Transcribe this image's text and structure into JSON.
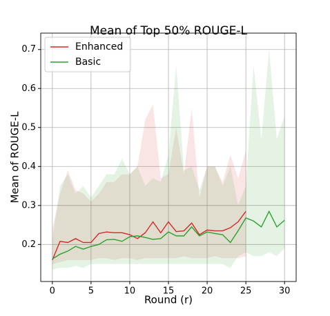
{
  "chart_data": {
    "type": "line",
    "title": "Mean of Top 50% ROUGE-L",
    "xlabel": "Round (r)",
    "ylabel": "Mean of ROUGE-L",
    "x": [
      0,
      1,
      2,
      3,
      4,
      5,
      6,
      7,
      8,
      9,
      10,
      11,
      12,
      13,
      14,
      15,
      16,
      17,
      18,
      19,
      20,
      21,
      22,
      23,
      24,
      25,
      26,
      27,
      28,
      29,
      30
    ],
    "series": [
      {
        "name": "Enhanced",
        "color": "#d62728",
        "values": [
          0.16,
          0.208,
          0.205,
          0.215,
          0.205,
          0.205,
          0.228,
          0.232,
          0.23,
          0.23,
          0.225,
          0.215,
          0.23,
          0.258,
          0.23,
          0.258,
          0.233,
          0.235,
          0.255,
          0.225,
          0.237,
          0.235,
          0.235,
          0.243,
          0.258,
          0.285,
          null,
          null,
          null,
          null,
          null
        ],
        "upper": [
          0.24,
          0.33,
          0.39,
          0.34,
          0.33,
          0.31,
          0.33,
          0.36,
          0.36,
          0.38,
          0.38,
          0.4,
          0.52,
          0.56,
          0.37,
          0.38,
          0.5,
          0.38,
          0.55,
          0.32,
          0.4,
          0.4,
          0.36,
          0.43,
          0.37,
          0.44,
          null,
          null,
          null,
          null,
          null
        ],
        "lower": [
          0.15,
          0.155,
          0.16,
          0.16,
          0.16,
          0.16,
          0.165,
          0.165,
          0.16,
          0.165,
          0.165,
          0.16,
          0.165,
          0.165,
          0.165,
          0.165,
          0.165,
          0.17,
          0.165,
          0.165,
          0.165,
          0.17,
          0.165,
          0.165,
          0.165,
          0.17,
          null,
          null,
          null,
          null,
          null
        ]
      },
      {
        "name": "Basic",
        "color": "#2ca02c",
        "values": [
          0.163,
          0.175,
          0.183,
          0.195,
          0.188,
          0.195,
          0.2,
          0.212,
          0.213,
          0.208,
          0.22,
          0.222,
          0.218,
          0.213,
          0.215,
          0.232,
          0.222,
          0.222,
          0.245,
          0.222,
          0.232,
          0.228,
          0.225,
          0.205,
          0.235,
          0.268,
          0.26,
          0.245,
          0.285,
          0.245,
          0.262
        ],
        "upper": [
          0.21,
          0.35,
          0.38,
          0.33,
          0.35,
          0.32,
          0.35,
          0.38,
          0.38,
          0.42,
          0.38,
          0.4,
          0.35,
          0.37,
          0.36,
          0.43,
          0.66,
          0.39,
          0.4,
          0.34,
          0.4,
          0.4,
          0.35,
          0.4,
          0.3,
          0.35,
          0.66,
          0.47,
          0.7,
          0.47,
          0.53
        ],
        "lower": [
          0.135,
          0.14,
          0.14,
          0.145,
          0.14,
          0.15,
          0.15,
          0.15,
          0.15,
          0.15,
          0.15,
          0.15,
          0.15,
          0.15,
          0.15,
          0.15,
          0.15,
          0.15,
          0.15,
          0.15,
          0.15,
          0.15,
          0.15,
          0.14,
          0.17,
          0.18,
          0.17,
          0.17,
          0.18,
          0.17,
          0.19
        ]
      }
    ],
    "xlim": [
      -1.5,
      31.5
    ],
    "ylim": [
      0.105,
      0.742
    ],
    "xticks": [
      0,
      5,
      10,
      15,
      20,
      25,
      30
    ],
    "yticks": [
      0.2,
      0.3,
      0.4,
      0.5,
      0.6,
      0.7
    ],
    "grid": true,
    "legend": "upper left"
  }
}
